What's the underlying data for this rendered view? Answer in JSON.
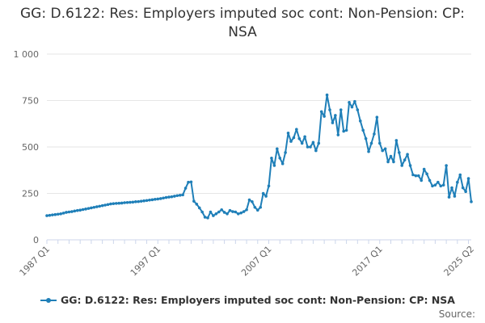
{
  "chart_data": {
    "type": "line",
    "title": "GG: D.6122: Res: Employers imputed soc cont: Non-Pension: CP: NSA",
    "xlabel": "",
    "ylabel": "",
    "ylim": [
      0,
      1000
    ],
    "y_ticks": [
      0,
      250,
      500,
      750,
      1000
    ],
    "y_tick_labels": [
      "0",
      "250",
      "500",
      "750",
      "1 000"
    ],
    "x_start": "1987 Q1",
    "x_end": "2025 Q2",
    "x_tick_labels": [
      "1987 Q1",
      "1997 Q1",
      "2007 Q1",
      "2017 Q1",
      "2025 Q2"
    ],
    "x_tick_index": [
      0,
      40,
      80,
      120,
      153
    ],
    "grid": true,
    "legend_position": "bottom",
    "color": "#1f7fb8",
    "series": [
      {
        "name": "GG: D.6122: Res: Employers imputed soc cont: Non-Pension: CP: NSA",
        "values": [
          130,
          132,
          134,
          136,
          138,
          140,
          144,
          148,
          150,
          152,
          155,
          158,
          160,
          163,
          166,
          169,
          172,
          175,
          178,
          181,
          184,
          187,
          190,
          193,
          195,
          196,
          197,
          198,
          200,
          201,
          202,
          203,
          205,
          206,
          208,
          210,
          212,
          214,
          216,
          218,
          220,
          222,
          225,
          228,
          230,
          232,
          235,
          238,
          240,
          242,
          278,
          310,
          312,
          208,
          192,
          172,
          150,
          122,
          118,
          150,
          130,
          140,
          150,
          162,
          148,
          140,
          158,
          152,
          150,
          140,
          145,
          152,
          162,
          215,
          205,
          175,
          160,
          175,
          250,
          235,
          290,
          440,
          400,
          490,
          440,
          410,
          470,
          575,
          530,
          550,
          595,
          545,
          520,
          555,
          500,
          500,
          525,
          480,
          520,
          690,
          665,
          780,
          700,
          630,
          670,
          565,
          700,
          585,
          590,
          740,
          715,
          745,
          700,
          640,
          590,
          545,
          475,
          520,
          570,
          660,
          520,
          480,
          490,
          420,
          450,
          420,
          535,
          470,
          400,
          430,
          460,
          400,
          350,
          345,
          345,
          320,
          380,
          355,
          320,
          290,
          295,
          310,
          290,
          295,
          400,
          230,
          280,
          235,
          310,
          350,
          280,
          260,
          330,
          205
        ]
      }
    ],
    "source_label": "Source:"
  }
}
